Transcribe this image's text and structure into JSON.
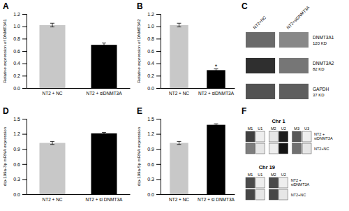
{
  "chart_data": [
    {
      "type": "bar",
      "title": "A",
      "categories": [
        "NT2 + NC",
        "NT2 + siDNMT3A"
      ],
      "values": [
        1.02,
        0.7
      ],
      "errors": [
        0.03,
        0.03
      ],
      "colors": [
        "#c8c8c8",
        "#000000"
      ],
      "ylabel": "Relative expression of DNMT3A1",
      "ylim": [
        0,
        1.2
      ],
      "yticks": [
        {
          "value": 0,
          "label": "0.0"
        },
        0.2,
        0.4,
        0.6,
        0.8,
        {
          "value": 1,
          "label": "1.0"
        },
        1.2
      ]
    },
    {
      "type": "bar",
      "title": "B",
      "categories": [
        "NT2 + NC",
        "NT2 + siDNMT3A"
      ],
      "values": [
        1.02,
        0.29
      ],
      "errors": [
        0.03,
        0.02
      ],
      "colors": [
        "#c8c8c8",
        "#000000"
      ],
      "ylabel": "Relative expression of DNMT3A2",
      "ylim": [
        0,
        1.2
      ],
      "yticks": [
        {
          "value": 0,
          "label": "0.0"
        },
        0.2,
        0.4,
        0.6,
        0.8,
        {
          "value": 1,
          "label": "1.0"
        },
        1.2
      ],
      "annotations": [
        {
          "text": "*",
          "x": "NT2 + siDNMT3A"
        }
      ]
    },
    {
      "type": "heatmap",
      "title": "C",
      "x": [
        "NT2+NC",
        "NT2+siDNMT3A"
      ],
      "y": [
        "DNMT3A1",
        "DNMT3A2",
        "GAPDH"
      ],
      "annotations": [
        "120 KD",
        "82 KD",
        "37 KD"
      ],
      "cells": [
        [
          0.55,
          0.42
        ],
        [
          0.8,
          0.5
        ],
        [
          0.65,
          0.6
        ]
      ]
    },
    {
      "type": "bar",
      "title": "D",
      "categories": [
        "NT2 + NC",
        "NT2 + si DNMT3A"
      ],
      "values": [
        1.02,
        1.21
      ],
      "errors": [
        0.03,
        0.02
      ],
      "colors": [
        "#c8c8c8",
        "#000000"
      ],
      "ylabel": "dip-199a-3p mRNA expression",
      "ylim": [
        0,
        1.5
      ],
      "yticks": [
        {
          "value": 0,
          "label": "0.0"
        },
        0.3,
        0.6,
        0.9,
        1.2,
        1.5
      ]
    },
    {
      "type": "bar",
      "title": "E",
      "categories": [
        "NT2 + NC",
        "NT2 + si DNMT3A"
      ],
      "values": [
        1.02,
        1.38
      ],
      "errors": [
        0.03,
        0.02
      ],
      "colors": [
        "#c8c8c8",
        "#000000"
      ],
      "ylabel": "dip-199a-5p mRNA expression",
      "ylim": [
        0,
        1.5
      ],
      "yticks": [
        {
          "value": 0,
          "label": "0.0"
        },
        0.3,
        0.6,
        0.9,
        1.2,
        1.5
      ]
    },
    {
      "type": "heatmap",
      "title": "F",
      "y": [
        "NT2 +\nsiDNMT3A",
        "NT2+NC"
      ],
      "series": [
        {
          "name": "Chr 1",
          "x": [
            "M1",
            "U1",
            "M2",
            "U2",
            "M3",
            "U3"
          ],
          "cells": [
            [
              0.75,
              0.05,
              0.08,
              0.88,
              0.65,
              0.05
            ],
            [
              0.5,
              0.08,
              0.05,
              0.92,
              0.55,
              0.08
            ]
          ]
        },
        {
          "name": "Chr 19",
          "x": [
            "M1",
            "U1",
            "M2",
            "U2"
          ],
          "cells": [
            [
              0.7,
              0.05,
              0.7,
              0.05
            ],
            [
              0.72,
              0.08,
              0.72,
              0.08
            ]
          ]
        }
      ]
    }
  ]
}
